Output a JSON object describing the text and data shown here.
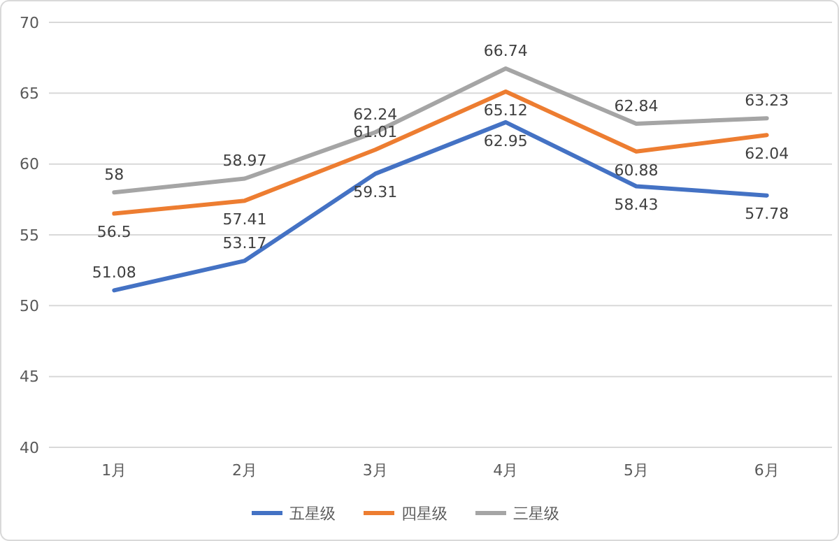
{
  "chart_data": {
    "type": "line",
    "categories": [
      "1月",
      "2月",
      "3月",
      "4月",
      "5月",
      "6月"
    ],
    "series": [
      {
        "name": "五星级",
        "color": "#4472c4",
        "values": [
          51.08,
          53.17,
          59.31,
          62.95,
          58.43,
          57.78
        ]
      },
      {
        "name": "四星级",
        "color": "#ed7d31",
        "values": [
          56.5,
          57.41,
          61.01,
          65.12,
          60.88,
          62.04
        ]
      },
      {
        "name": "三星级",
        "color": "#a5a5a5",
        "values": [
          58,
          58.97,
          62.24,
          66.74,
          62.84,
          63.23
        ]
      }
    ],
    "ylim": [
      40,
      70
    ],
    "yticks": [
      40,
      45,
      50,
      55,
      60,
      65,
      70
    ],
    "grid": "y",
    "legend": "bottom",
    "data_labels": true,
    "marker": "none",
    "line_style": "solid"
  }
}
